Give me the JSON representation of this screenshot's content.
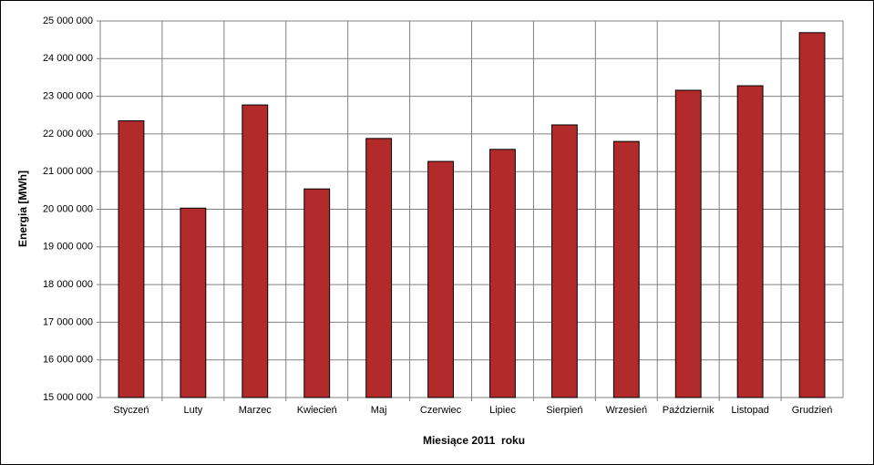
{
  "chart_data": {
    "type": "bar",
    "x_label": "Miesiące 2011  roku",
    "y_label": "Energia [MWh]",
    "categories": [
      "Styczeń",
      "Luty",
      "Marzec",
      "Kwiecień",
      "Maj",
      "Czerwiec",
      "Lipiec",
      "Sierpień",
      "Wrzesień",
      "Październik",
      "Listopad",
      "Grudzień"
    ],
    "values": [
      22350000,
      20030000,
      22770000,
      20540000,
      21880000,
      21270000,
      21590000,
      22240000,
      21800000,
      23160000,
      23280000,
      24690000
    ],
    "color": "#b22a2a",
    "ylim": [
      15000000,
      25000000
    ],
    "yticks": [
      {
        "value": 15000000,
        "label": "15 000 000"
      },
      {
        "value": 16000000,
        "label": "16 000 000"
      },
      {
        "value": 17000000,
        "label": "17 000 000"
      },
      {
        "value": 18000000,
        "label": "18 000 000"
      },
      {
        "value": 19000000,
        "label": "19 000 000"
      },
      {
        "value": 20000000,
        "label": "20 000 000"
      },
      {
        "value": 21000000,
        "label": "21 000 000"
      },
      {
        "value": 22000000,
        "label": "22 000 000"
      },
      {
        "value": 23000000,
        "label": "23 000 000"
      },
      {
        "value": 24000000,
        "label": "24 000 000"
      },
      {
        "value": 25000000,
        "label": "25 000 000"
      }
    ],
    "grid": true
  }
}
